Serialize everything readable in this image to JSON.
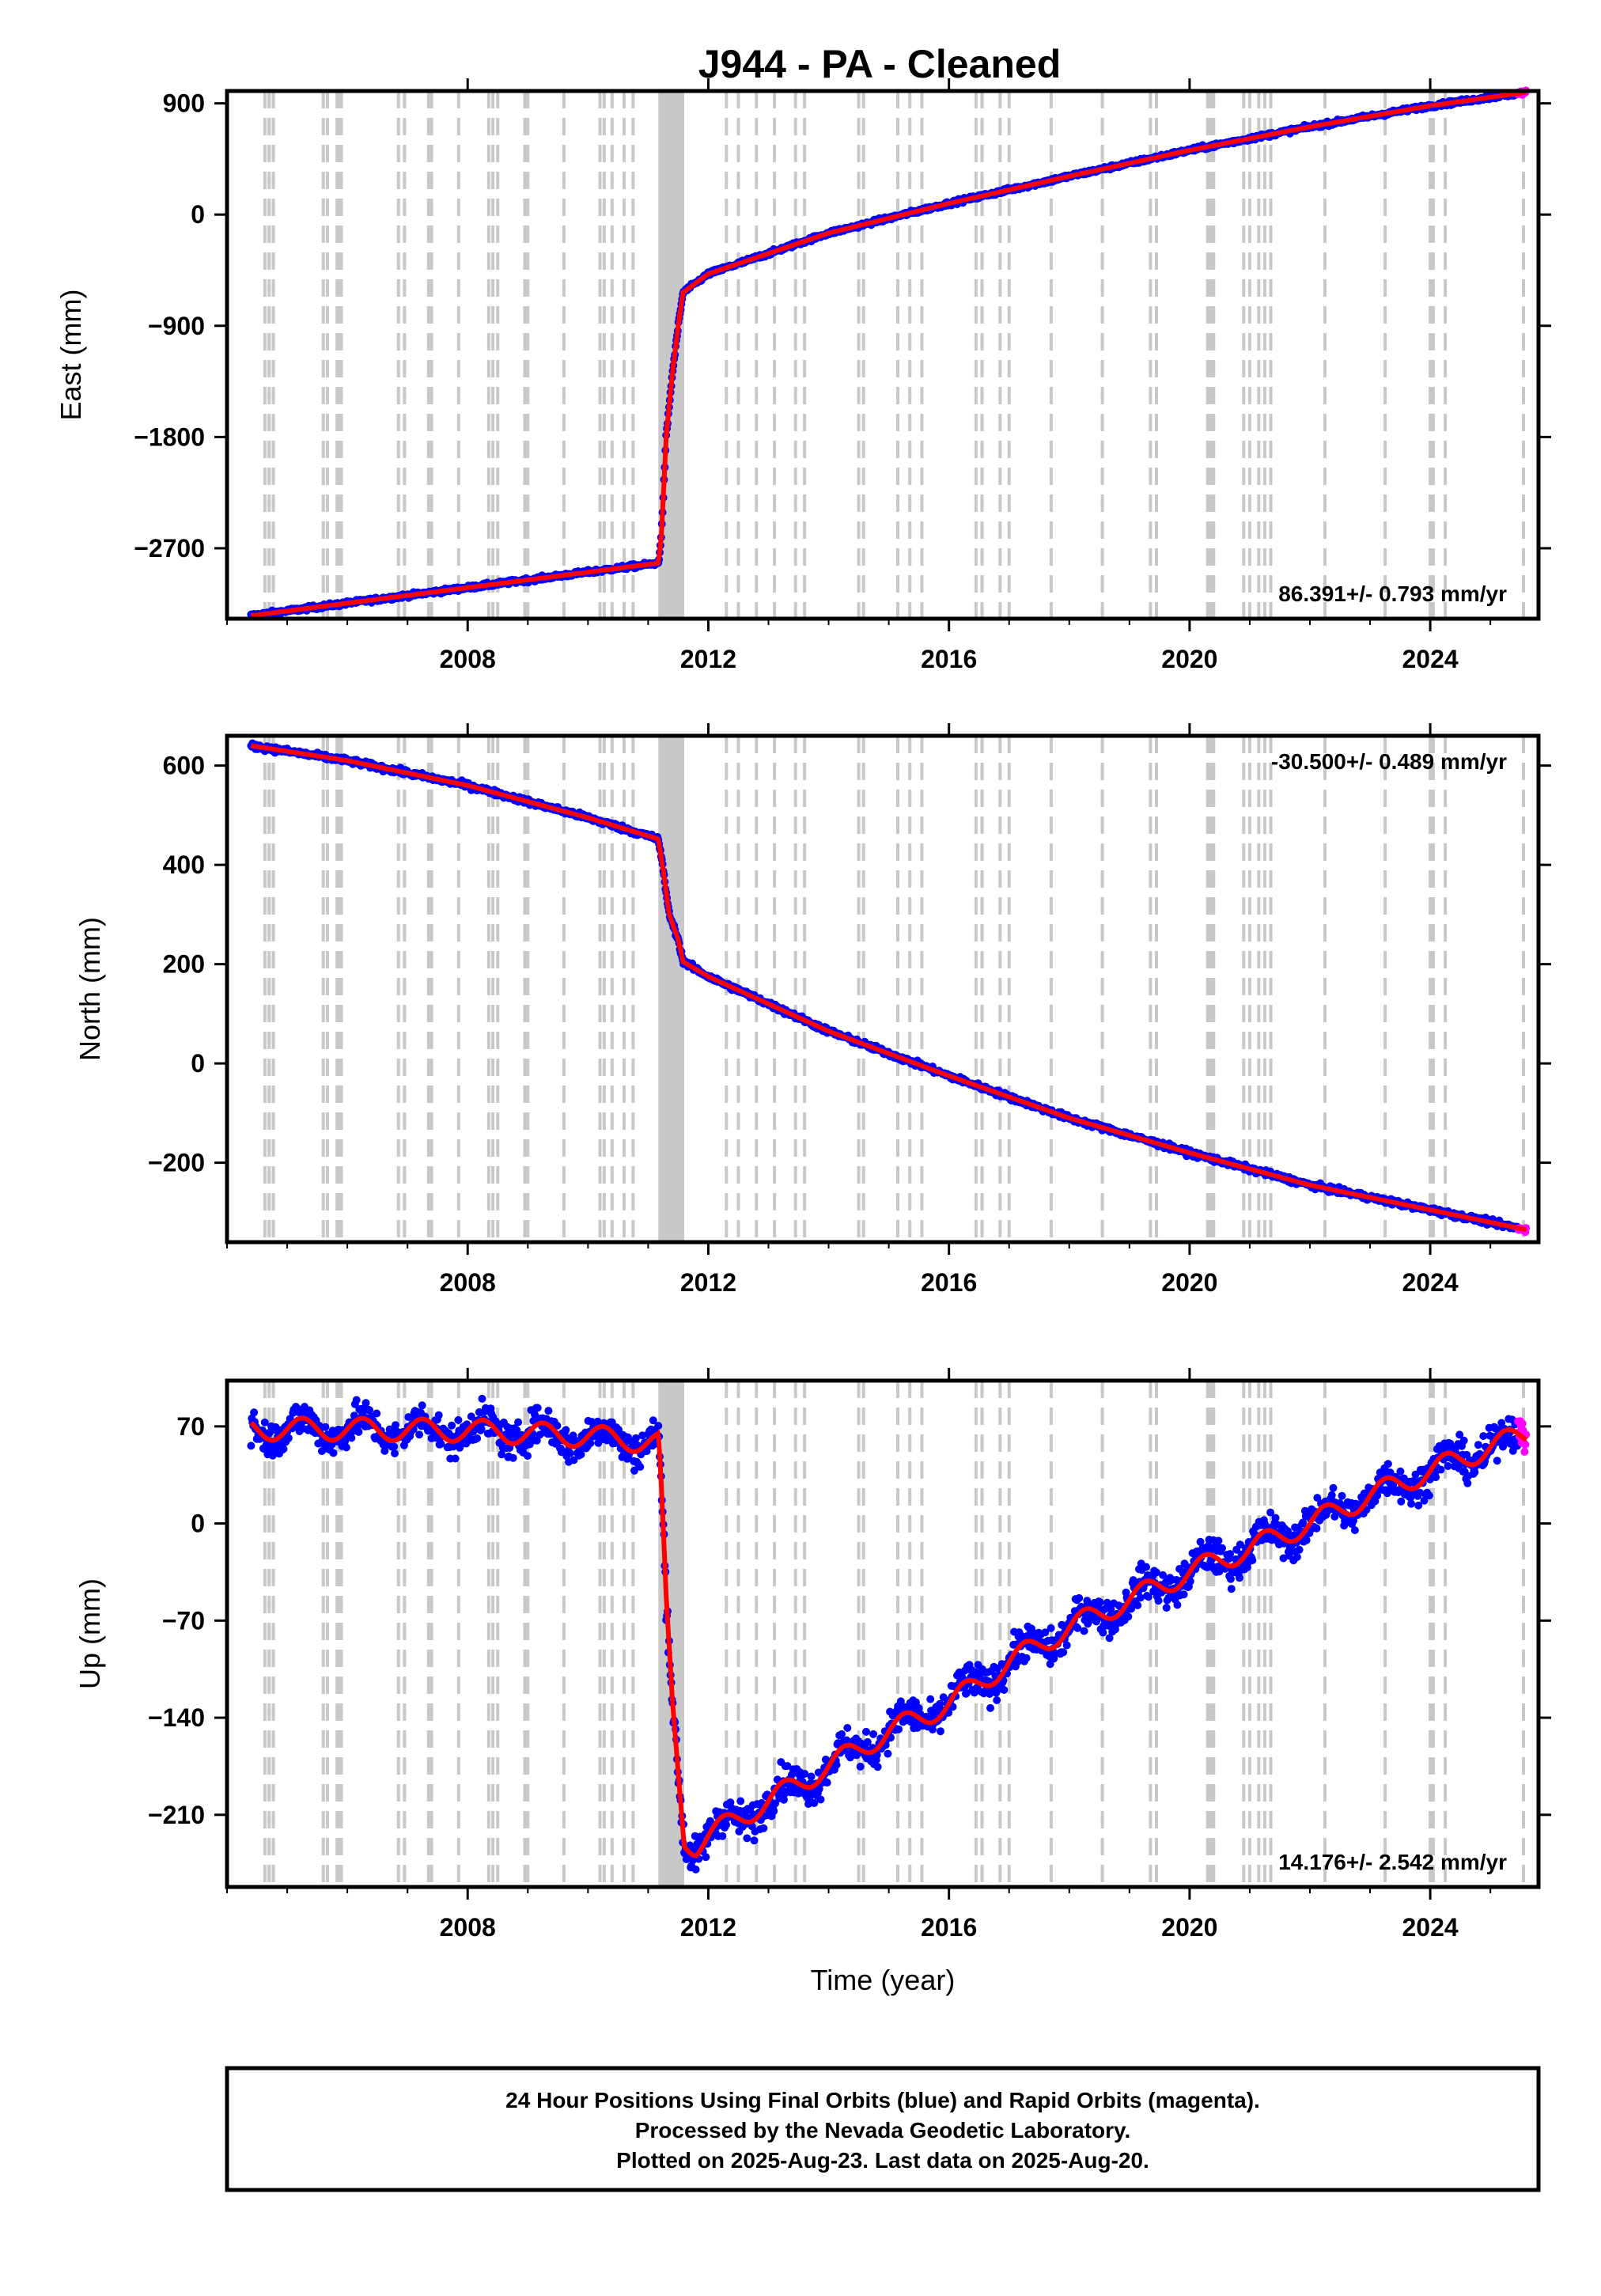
{
  "title": "J944  - PA - Cleaned",
  "colors": {
    "final_orbit": "#0000ff",
    "rapid_orbit": "#ff00ff",
    "model": "#ff0000",
    "event_line": "#c8c8c8"
  },
  "chart_data": [
    {
      "type": "scatter",
      "panel": "east",
      "ylabel": "East (mm)",
      "xlabel": "",
      "xlim": [
        2004.0,
        2025.8
      ],
      "ylim": [
        -3270,
        1000
      ],
      "yticks": [
        900,
        0,
        -900,
        -1800,
        -2700
      ],
      "xticks": [
        2008,
        2012,
        2016,
        2020,
        2024
      ],
      "rate_text": "86.391+/- 0.793 mm/yr",
      "rate_position": "bottom-right",
      "trend": [
        [
          2004.4,
          -3245
        ],
        [
          2011.17,
          -2820
        ],
        [
          2011.22,
          -2600
        ],
        [
          2011.3,
          -1800
        ],
        [
          2011.4,
          -1300
        ],
        [
          2011.5,
          -900
        ],
        [
          2011.58,
          -630
        ],
        [
          2012.0,
          -480
        ],
        [
          2014.0,
          -150
        ],
        [
          2016.0,
          90
        ],
        [
          2018.0,
          310
        ],
        [
          2020.0,
          520
        ],
        [
          2022.0,
          710
        ],
        [
          2024.0,
          880
        ],
        [
          2025.6,
          990
        ]
      ],
      "noise_mm": 12,
      "seasonal_mm": 0
    },
    {
      "type": "scatter",
      "panel": "north",
      "ylabel": "North (mm)",
      "xlabel": "",
      "xlim": [
        2004.0,
        2025.8
      ],
      "ylim": [
        -360,
        660
      ],
      "yticks": [
        600,
        400,
        200,
        0,
        -200
      ],
      "xticks": [
        2008,
        2012,
        2016,
        2020,
        2024
      ],
      "rate_text": "-30.500+/- 0.489 mm/yr",
      "rate_position": "top-right",
      "trend": [
        [
          2004.4,
          640
        ],
        [
          2006.0,
          610
        ],
        [
          2008.0,
          560
        ],
        [
          2010.0,
          495
        ],
        [
          2011.17,
          452
        ],
        [
          2011.25,
          390
        ],
        [
          2011.35,
          300
        ],
        [
          2011.5,
          250
        ],
        [
          2011.58,
          205
        ],
        [
          2012.0,
          175
        ],
        [
          2014.0,
          65
        ],
        [
          2016.0,
          -25
        ],
        [
          2018.0,
          -110
        ],
        [
          2020.0,
          -180
        ],
        [
          2022.0,
          -245
        ],
        [
          2024.0,
          -295
        ],
        [
          2025.6,
          -335
        ]
      ],
      "noise_mm": 4,
      "seasonal_mm": 0
    },
    {
      "type": "scatter",
      "panel": "up",
      "ylabel": "Up (mm)",
      "xlabel": "Time (year)",
      "xlim": [
        2004.0,
        2025.8
      ],
      "ylim": [
        -262,
        103
      ],
      "yticks": [
        70,
        0,
        -70,
        -140,
        -210
      ],
      "xticks": [
        2008,
        2012,
        2016,
        2020,
        2024
      ],
      "rate_text": "14.176+/- 2.542 mm/yr",
      "rate_position": "bottom-right",
      "trend": [
        [
          2004.4,
          68
        ],
        [
          2006.0,
          68
        ],
        [
          2008.0,
          67
        ],
        [
          2009.0,
          65
        ],
        [
          2010.0,
          63
        ],
        [
          2011.17,
          58
        ],
        [
          2011.22,
          20
        ],
        [
          2011.3,
          -60
        ],
        [
          2011.4,
          -130
        ],
        [
          2011.5,
          -180
        ],
        [
          2011.6,
          -228
        ],
        [
          2011.8,
          -232
        ],
        [
          2012.0,
          -225
        ],
        [
          2013.0,
          -200
        ],
        [
          2014.0,
          -175
        ],
        [
          2015.0,
          -150
        ],
        [
          2016.0,
          -130
        ],
        [
          2017.0,
          -100
        ],
        [
          2018.0,
          -75
        ],
        [
          2019.0,
          -55
        ],
        [
          2020.0,
          -35
        ],
        [
          2021.0,
          -18
        ],
        [
          2022.0,
          0
        ],
        [
          2023.0,
          20
        ],
        [
          2024.0,
          38
        ],
        [
          2025.0,
          55
        ],
        [
          2025.6,
          65
        ]
      ],
      "noise_mm": 9,
      "seasonal_mm": 8
    }
  ],
  "event_lines": [
    2004.63,
    2004.7,
    2004.77,
    2005.6,
    2005.67,
    2005.83,
    2005.87,
    2005.9,
    2006.85,
    2006.95,
    2007.35,
    2007.4,
    2007.85,
    2008.35,
    2008.42,
    2008.5,
    2008.95,
    2009.0,
    2009.6,
    2010.2,
    2010.27,
    2010.4,
    2010.6,
    2010.75,
    2012.3,
    2012.5,
    2012.8,
    2013.1,
    2013.45,
    2013.6,
    2014.5,
    2014.58,
    2015.15,
    2015.35,
    2015.55,
    2016.45,
    2016.55,
    2016.85,
    2017.0,
    2017.7,
    2018.55,
    2019.35,
    2019.45,
    2020.3,
    2020.35,
    2020.4,
    2020.9,
    2021.0,
    2021.15,
    2021.25,
    2021.35,
    2022.25,
    2023.25,
    2024.0,
    2024.05,
    2024.25,
    2025.55
  ],
  "event_band": [
    2011.17,
    2011.6
  ],
  "footer": {
    "line1": "24 Hour Positions Using Final Orbits (blue) and Rapid Orbits (magenta).",
    "line2": "Processed by the Nevada Geodetic Laboratory.",
    "line3": "Plotted on 2025-Aug-23. Last data on 2025-Aug-20."
  }
}
